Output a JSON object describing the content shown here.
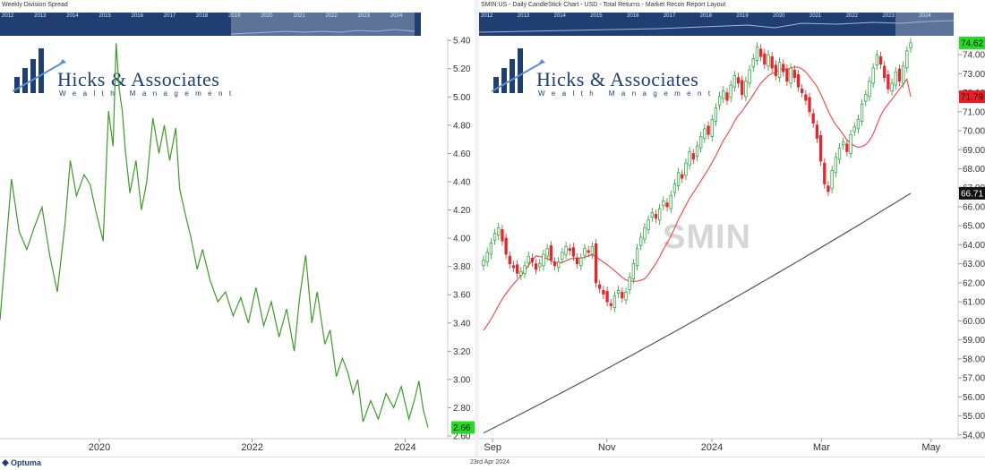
{
  "app": {
    "vendor": "Optuma",
    "date": "23rd Apr 2024",
    "colors": {
      "navigator": "#1f3f72",
      "brand": "#1f3f72",
      "line": "#3e9a2a",
      "up_candle": "#1e9e2e",
      "down_candle": "#e0282e",
      "ma_short": "#f05050",
      "ma_long": "#555555",
      "tag_green": "#22dd22",
      "tag_red": "#ee1c24",
      "tag_black": "#111111"
    }
  },
  "logo": {
    "name": "Hicks & Associates",
    "subtitle": "Wealth Management"
  },
  "left": {
    "title": "Weekly Division Spread",
    "navigator_years": [
      "2012",
      "2013",
      "2014",
      "2015",
      "2016",
      "2017",
      "2018",
      "2019",
      "2020",
      "2021",
      "2022",
      "2023",
      "2024"
    ],
    "last_value_label": "2.66"
  },
  "right": {
    "title": "SMIN:US - Daily CandleStick Chart - USD - Total Returns - Market Recon Report Layout",
    "watermark": "SMIN",
    "navigator_years": [
      "2012",
      "2013",
      "2014",
      "2015",
      "2016",
      "2017",
      "2018",
      "2019",
      "2020",
      "2021",
      "2022",
      "2023",
      "2024"
    ],
    "tags": [
      {
        "label": "74.62",
        "value": 74.62,
        "color": "#22dd22",
        "text": "#111111"
      },
      {
        "label": "71.79",
        "value": 71.79,
        "color": "#ee1c24",
        "text": "#111111"
      },
      {
        "label": "66.71",
        "value": 66.71,
        "color": "#111111",
        "text": "#ffffff"
      }
    ]
  },
  "chart_data": [
    {
      "type": "line",
      "title": "Weekly Division Spread",
      "xlabel": "",
      "ylabel": "",
      "x_ticks": [
        "2020",
        "2022",
        "2024"
      ],
      "y_ticks": [
        "2.60",
        "2.80",
        "3.00",
        "3.20",
        "3.40",
        "3.60",
        "3.80",
        "4.00",
        "4.20",
        "4.40",
        "4.60",
        "4.80",
        "5.00",
        "5.20",
        "5.40"
      ],
      "ylim": [
        2.6,
        5.42
      ],
      "x": [
        2018.7,
        2018.85,
        2018.95,
        2019.05,
        2019.15,
        2019.25,
        2019.35,
        2019.45,
        2019.55,
        2019.62,
        2019.7,
        2019.8,
        2019.88,
        2019.95,
        2020.05,
        2020.12,
        2020.18,
        2020.22,
        2020.26,
        2020.3,
        2020.34,
        2020.4,
        2020.48,
        2020.55,
        2020.62,
        2020.7,
        2020.78,
        2020.85,
        2020.92,
        2021.0,
        2021.05,
        2021.12,
        2021.2,
        2021.28,
        2021.35,
        2021.45,
        2021.55,
        2021.65,
        2021.75,
        2021.85,
        2021.95,
        2022.05,
        2022.15,
        2022.25,
        2022.35,
        2022.45,
        2022.55,
        2022.62,
        2022.7,
        2022.78,
        2022.85,
        2022.95,
        2023.02,
        2023.1,
        2023.18,
        2023.25,
        2023.32,
        2023.38,
        2023.45,
        2023.55,
        2023.65,
        2023.75,
        2023.85,
        2023.95,
        2024.05,
        2024.12,
        2024.18,
        2024.24,
        2024.3
      ],
      "y": [
        3.42,
        4.42,
        4.05,
        3.92,
        4.08,
        4.22,
        3.88,
        3.62,
        4.1,
        4.55,
        4.3,
        4.45,
        4.38,
        4.2,
        3.98,
        4.9,
        4.65,
        5.38,
        5.05,
        4.9,
        4.62,
        4.32,
        4.55,
        4.2,
        4.4,
        4.85,
        4.6,
        4.8,
        4.55,
        4.78,
        4.35,
        4.18,
        4.0,
        3.78,
        3.92,
        3.7,
        3.55,
        3.62,
        3.45,
        3.58,
        3.4,
        3.65,
        3.38,
        3.55,
        3.3,
        3.5,
        3.2,
        3.58,
        3.88,
        3.4,
        3.62,
        3.25,
        3.35,
        3.02,
        3.15,
        3.05,
        2.9,
        3.0,
        2.7,
        2.85,
        2.72,
        2.9,
        2.8,
        2.95,
        2.72,
        2.85,
        2.99,
        2.78,
        2.66
      ]
    },
    {
      "type": "candlestick",
      "title": "SMIN:US - Daily CandleStick Chart - USD - Total Returns - Market Recon Report Layout",
      "xlabel": "",
      "ylabel": "",
      "x_ticks": [
        "Sep",
        "Nov",
        "2024",
        "Mar",
        "May"
      ],
      "y_ticks": [
        "54.00",
        "55.00",
        "56.00",
        "57.00",
        "58.00",
        "59.00",
        "60.00",
        "61.00",
        "62.00",
        "63.00",
        "64.00",
        "65.00",
        "66.00",
        "67.00",
        "68.00",
        "69.00",
        "70.00",
        "71.00",
        "72.00",
        "73.00",
        "74.00"
      ],
      "ylim": [
        53.8,
        74.9
      ],
      "closes": [
        63.2,
        63.6,
        64.1,
        64.6,
        64.9,
        64.2,
        63.5,
        63.0,
        62.8,
        62.5,
        62.6,
        62.9,
        63.4,
        63.1,
        62.7,
        63.0,
        63.5,
        63.8,
        63.2,
        62.9,
        63.1,
        63.6,
        63.9,
        63.7,
        63.4,
        63.0,
        63.3,
        63.8,
        63.6,
        63.9,
        62.0,
        61.7,
        61.4,
        61.0,
        60.8,
        61.3,
        61.6,
        61.2,
        61.5,
        62.3,
        63.0,
        63.8,
        64.4,
        64.9,
        65.3,
        65.7,
        65.4,
        65.9,
        66.3,
        66.0,
        66.6,
        67.2,
        67.8,
        67.5,
        68.3,
        68.9,
        68.5,
        69.2,
        69.7,
        70.1,
        69.8,
        70.6,
        71.2,
        71.8,
        72.1,
        71.6,
        72.4,
        72.9,
        72.5,
        71.9,
        72.6,
        73.2,
        73.8,
        74.4,
        73.9,
        73.5,
        74.0,
        73.3,
        72.9,
        73.6,
        73.1,
        72.6,
        73.3,
        72.8,
        72.3,
        72.0,
        71.6,
        71.0,
        70.4,
        69.6,
        68.4,
        67.2,
        66.8,
        67.9,
        68.6,
        69.1,
        69.4,
        68.9,
        69.8,
        70.2,
        70.6,
        71.4,
        71.9,
        72.6,
        73.3,
        74.0,
        73.5,
        72.8,
        72.2,
        72.5,
        73.1,
        72.6,
        73.4,
        74.2,
        74.62
      ],
      "moving_average_short_end": 71.79,
      "moving_average_long_end": 66.71,
      "last_close": 74.62
    }
  ]
}
